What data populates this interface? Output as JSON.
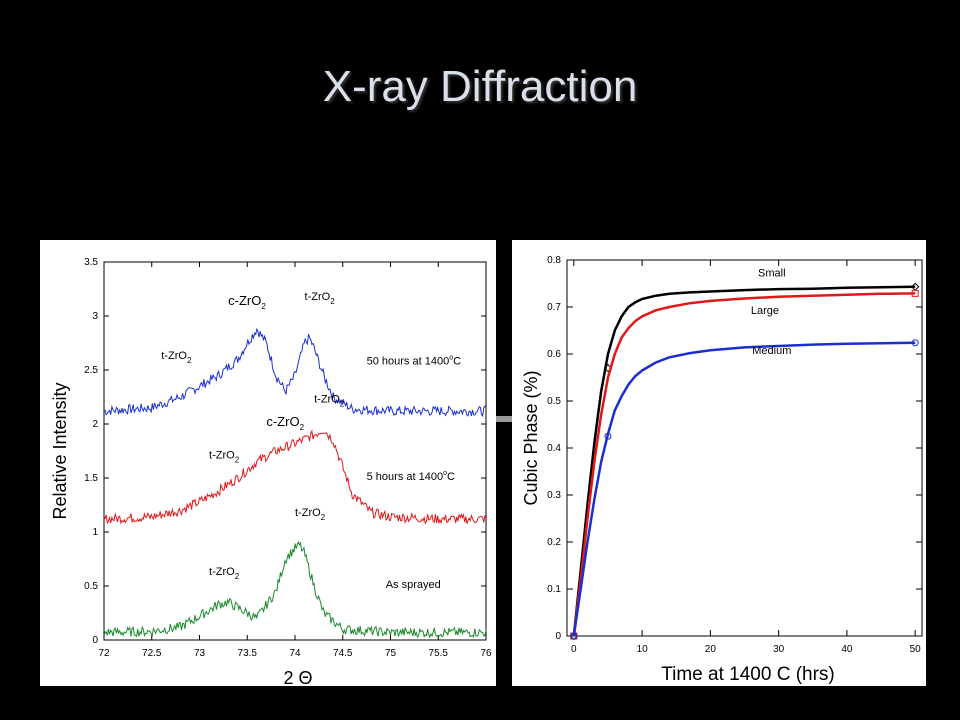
{
  "slide": {
    "title": "X-ray Diffraction"
  },
  "chart_data": [
    {
      "type": "line",
      "xlabel": "2 Θ",
      "ylabel": "Relative Intensity",
      "xlim": [
        72,
        76
      ],
      "ylim": [
        0,
        3.5
      ],
      "x_ticks": [
        "72",
        "72.5",
        "73",
        "73.5",
        "74",
        "74.5",
        "75",
        "75.5",
        "76"
      ],
      "y_ticks": [
        "0",
        "0.5",
        "1",
        "1.5",
        "2",
        "2.5",
        "3",
        "3.5"
      ],
      "grid": false,
      "series": [
        {
          "name": "50 hours at 1400°C",
          "color": "#1b2fd0",
          "x": [
            72,
            72.5,
            72.8,
            73,
            73.2,
            73.4,
            73.5,
            73.6,
            73.7,
            73.8,
            73.9,
            74.0,
            74.1,
            74.15,
            74.2,
            74.3,
            74.4,
            74.6,
            75,
            75.5,
            76
          ],
          "y": [
            2.12,
            2.15,
            2.25,
            2.35,
            2.45,
            2.6,
            2.75,
            2.88,
            2.75,
            2.45,
            2.3,
            2.45,
            2.75,
            2.8,
            2.7,
            2.45,
            2.25,
            2.14,
            2.12,
            2.12,
            2.12
          ]
        },
        {
          "name": "5 hours at 1400°C",
          "color": "#e01818",
          "x": [
            72,
            72.5,
            72.8,
            73,
            73.2,
            73.4,
            73.6,
            73.8,
            74.0,
            74.2,
            74.3,
            74.4,
            74.5,
            74.6,
            74.8,
            75,
            75.5,
            76
          ],
          "y": [
            1.12,
            1.14,
            1.2,
            1.28,
            1.38,
            1.5,
            1.65,
            1.75,
            1.82,
            1.9,
            1.95,
            1.85,
            1.6,
            1.35,
            1.18,
            1.14,
            1.12,
            1.12
          ]
        },
        {
          "name": "As sprayed",
          "color": "#1c8a2c",
          "x": [
            72,
            72.5,
            72.8,
            73,
            73.2,
            73.3,
            73.4,
            73.6,
            73.8,
            73.9,
            74.0,
            74.05,
            74.1,
            74.2,
            74.3,
            74.5,
            75,
            75.5,
            76
          ],
          "y": [
            0.07,
            0.08,
            0.12,
            0.22,
            0.33,
            0.35,
            0.3,
            0.2,
            0.45,
            0.75,
            0.85,
            0.88,
            0.8,
            0.5,
            0.25,
            0.1,
            0.07,
            0.07,
            0.07
          ]
        }
      ],
      "annotations": [
        {
          "text": "c-ZrO",
          "sub": "2",
          "x": 73.3,
          "y": 3.1
        },
        {
          "text": "t-ZrO",
          "sub": "2",
          "x": 74.1,
          "y": 3.15
        },
        {
          "text": "t-ZrO",
          "sub": "2",
          "x": 72.6,
          "y": 2.6
        },
        {
          "text": "50 hours at 1400",
          "sup": "o",
          "suffix": "C",
          "x": 74.75,
          "y": 2.55
        },
        {
          "text": "t-ZrO",
          "sub": "2",
          "x": 74.2,
          "y": 2.2
        },
        {
          "text": "c-ZrO",
          "sub": "2",
          "x": 73.7,
          "y": 1.98
        },
        {
          "text": "t-ZrO",
          "sub": "2",
          "x": 73.1,
          "y": 1.68
        },
        {
          "text": "5 hours at 1400",
          "sup": "o",
          "suffix": "C",
          "x": 74.75,
          "y": 1.48
        },
        {
          "text": "t-ZrO",
          "sub": "2",
          "x": 74.0,
          "y": 1.15
        },
        {
          "text": "t-ZrO",
          "sub": "2",
          "x": 73.1,
          "y": 0.6
        },
        {
          "text": "As sprayed",
          "x": 74.95,
          "y": 0.48
        }
      ]
    },
    {
      "type": "line",
      "xlabel": "Time at 1400 C (hrs)",
      "ylabel": "Cubic Phase (%)",
      "xlim": [
        -1,
        51
      ],
      "ylim": [
        0,
        0.8
      ],
      "x_ticks": [
        "0",
        "10",
        "20",
        "30",
        "40",
        "50"
      ],
      "y_ticks": [
        "0",
        "0.1",
        "0.2",
        "0.3",
        "0.4",
        "0.5",
        "0.6",
        "0.7",
        "0.8"
      ],
      "grid": false,
      "series": [
        {
          "name": "Small",
          "color": "#000000",
          "marker": "diamond",
          "x": [
            0,
            1,
            2,
            3,
            4,
            5,
            6,
            7,
            8,
            9,
            10,
            12,
            14,
            17,
            20,
            25,
            30,
            35,
            40,
            45,
            50
          ],
          "y": [
            0,
            0.14,
            0.28,
            0.41,
            0.52,
            0.6,
            0.65,
            0.68,
            0.7,
            0.71,
            0.717,
            0.724,
            0.728,
            0.731,
            0.733,
            0.736,
            0.738,
            0.739,
            0.741,
            0.742,
            0.743
          ],
          "markers_x": [
            0,
            5,
            50
          ],
          "markers_y": [
            0,
            0.57,
            0.743
          ]
        },
        {
          "name": "Large",
          "color": "#e01818",
          "marker": "square",
          "x": [
            0,
            1,
            2,
            3,
            4,
            5,
            6,
            7,
            8,
            9,
            10,
            12,
            14,
            17,
            20,
            25,
            30,
            35,
            40,
            45,
            50
          ],
          "y": [
            0,
            0.12,
            0.25,
            0.37,
            0.47,
            0.55,
            0.6,
            0.635,
            0.655,
            0.67,
            0.68,
            0.693,
            0.7,
            0.708,
            0.713,
            0.718,
            0.722,
            0.724,
            0.726,
            0.728,
            0.729
          ],
          "markers_x": [
            0,
            50
          ],
          "markers_y": [
            0,
            0.729
          ]
        },
        {
          "name": "Medium",
          "color": "#1b2fd0",
          "marker": "circle",
          "x": [
            0,
            1,
            2,
            3,
            4,
            5,
            6,
            7,
            8,
            9,
            10,
            12,
            14,
            17,
            20,
            25,
            30,
            35,
            40,
            45,
            50
          ],
          "y": [
            0,
            0.1,
            0.2,
            0.29,
            0.37,
            0.43,
            0.48,
            0.51,
            0.535,
            0.553,
            0.565,
            0.582,
            0.593,
            0.602,
            0.608,
            0.614,
            0.617,
            0.62,
            0.622,
            0.623,
            0.624
          ],
          "markers_x": [
            0,
            5,
            50
          ],
          "markers_y": [
            0,
            0.425,
            0.624
          ]
        }
      ],
      "legend_labels": [
        {
          "name": "Small",
          "x": 29,
          "y": 0.765
        },
        {
          "name": "Large",
          "x": 28,
          "y": 0.685
        },
        {
          "name": "Medium",
          "x": 29,
          "y": 0.6
        }
      ]
    }
  ]
}
